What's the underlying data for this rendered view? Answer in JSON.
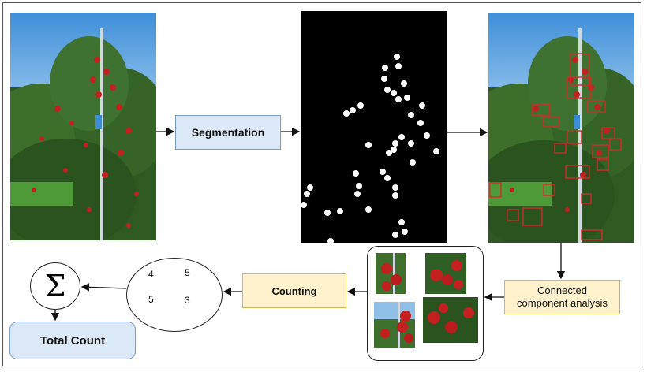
{
  "diagram": {
    "nodes": {
      "segmentation": "Segmentation",
      "counting": "Counting",
      "cca_line1": "Connected",
      "cca_line2": "component analysis",
      "total": "Total Count",
      "sigma": "Σ"
    },
    "cluster_counts": [
      "4",
      "5",
      "5",
      "3"
    ],
    "images": {
      "input": "orchard-input-photo",
      "mask": "binary-segmentation-mask",
      "detections": "detected-apples-photo",
      "crops": "cropped-apple-clusters"
    }
  },
  "colors": {
    "blue_fill": "#dbe8f7",
    "blue_border": "#7a9cc6",
    "yellow_fill": "#fff2cc",
    "yellow_border": "#d6b656",
    "detection_box": "#d42a2a"
  }
}
